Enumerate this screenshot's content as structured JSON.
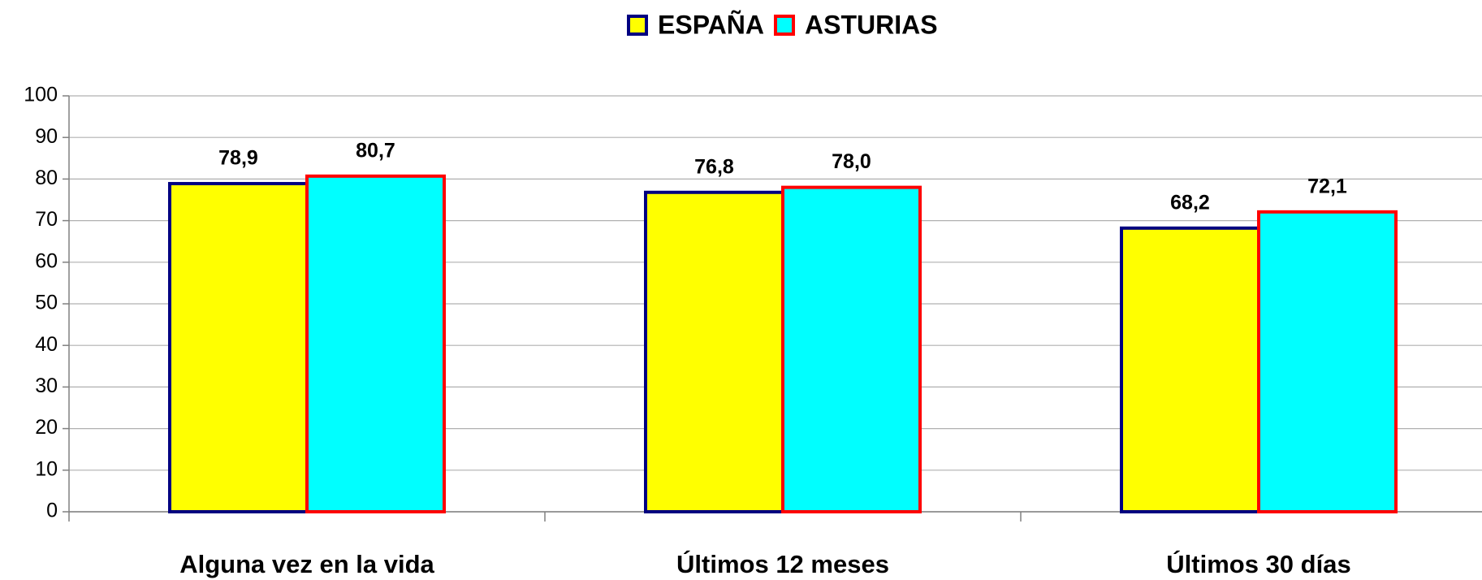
{
  "chart_data": {
    "type": "bar",
    "categories": [
      "Alguna vez en la vida",
      "Últimos 12 meses",
      "Últimos 30 días"
    ],
    "series": [
      {
        "name": "ESPAÑA",
        "color": "#ffff00",
        "edge_color": "#000080",
        "values": [
          78.9,
          76.8,
          68.2
        ],
        "value_labels": [
          "78,9",
          "76,8",
          "68,2"
        ]
      },
      {
        "name": "ASTURIAS",
        "color": "#00ffff",
        "edge_color": "#ff0000",
        "values": [
          80.7,
          78.0,
          72.1
        ],
        "value_labels": [
          "80,7",
          "78,0",
          "72,1"
        ]
      }
    ],
    "ylim": [
      0,
      100
    ],
    "yticks": [
      0,
      10,
      20,
      30,
      40,
      50,
      60,
      70,
      80,
      90,
      100
    ],
    "grid": true,
    "legend": "top"
  }
}
